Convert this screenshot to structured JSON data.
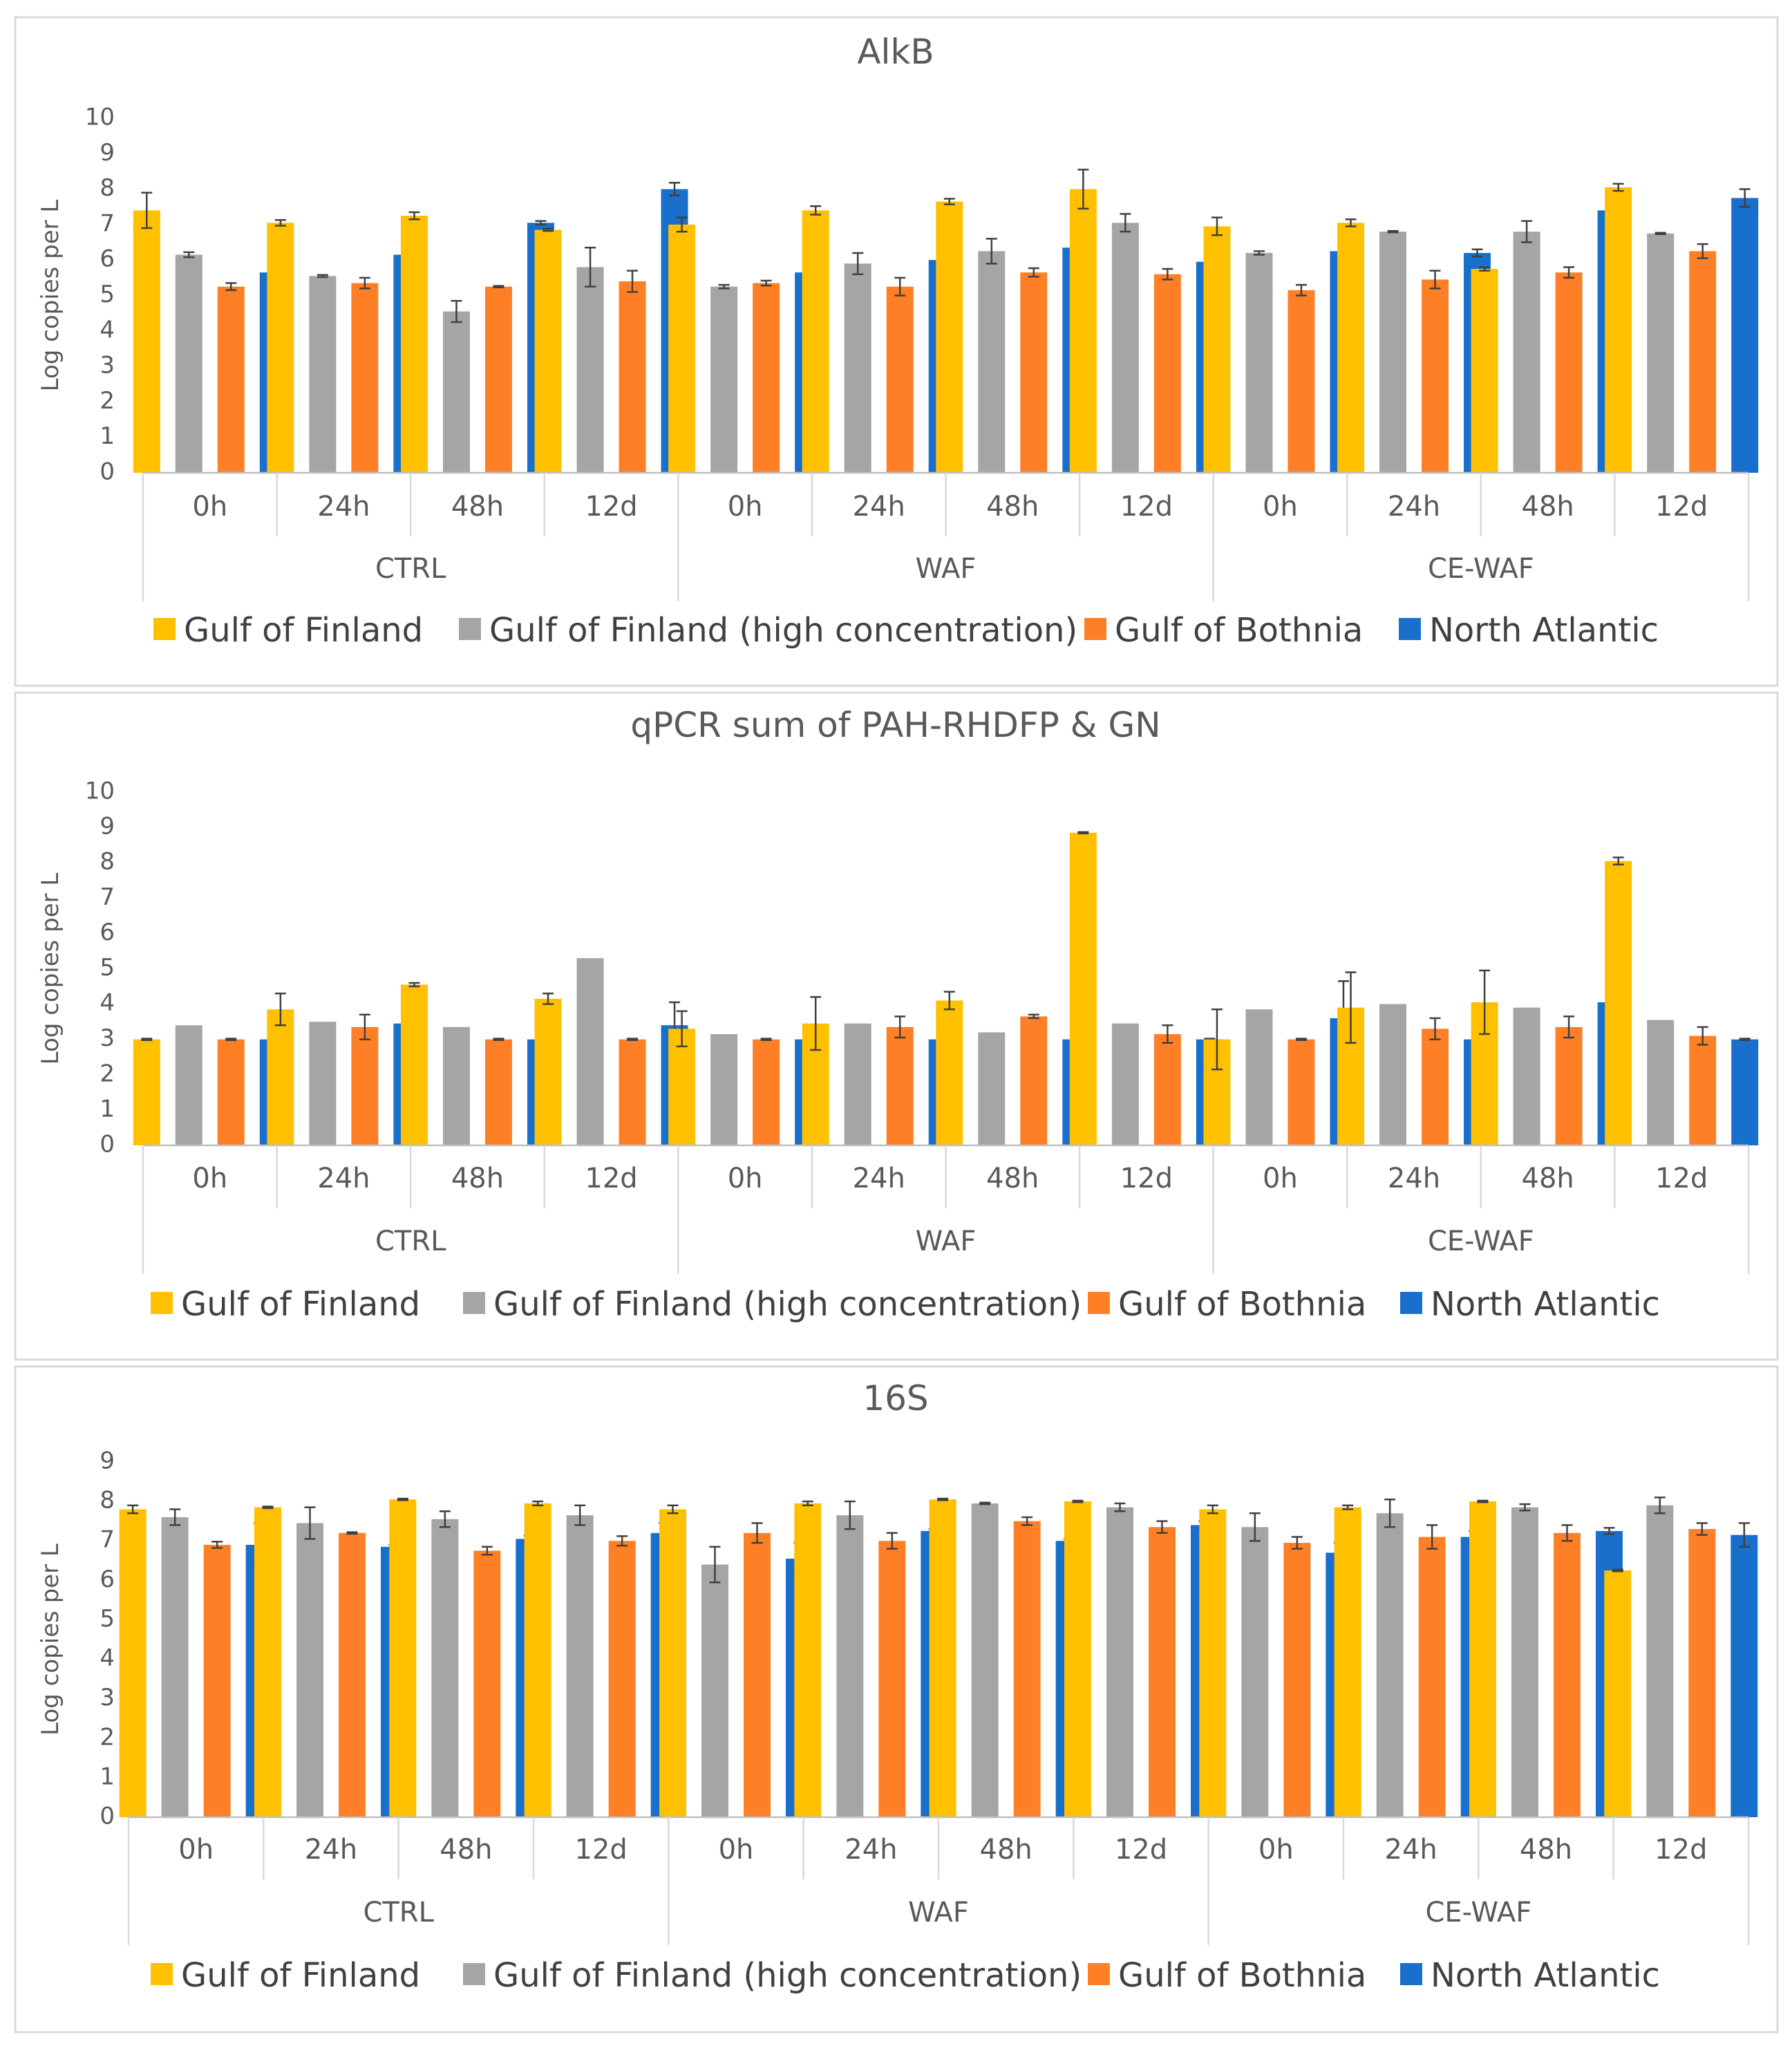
{
  "colors": {
    "gulf_finland": "#FFC000",
    "gulf_finland_high": "#A5A5A5",
    "gulf_bothnia": "#FF7F27",
    "north_atlantic": "#1870CC"
  },
  "chart_data": [
    {
      "type": "bar",
      "title": "AlkB",
      "ylabel": "Log copies per L",
      "xlabel": "",
      "ylim": [
        0,
        10
      ],
      "yticks": [
        0,
        1,
        2,
        3,
        4,
        5,
        6,
        7,
        8,
        9,
        10
      ],
      "groups": [
        "CTRL",
        "WAF",
        "CE-WAF"
      ],
      "timepoints": [
        "0h",
        "24h",
        "48h",
        "12d"
      ],
      "legend_position": "bottom",
      "series": [
        {
          "name": "Gulf of Finland",
          "color_key": "gulf_finland",
          "values": [
            7.4,
            7.05,
            7.25,
            6.85,
            7.0,
            7.4,
            7.65,
            8.0,
            6.95,
            7.05,
            5.75,
            8.05
          ],
          "errors": [
            0.5,
            0.08,
            0.1,
            0.03,
            0.2,
            0.12,
            0.08,
            0.55,
            0.25,
            0.1,
            0.05,
            0.1
          ]
        },
        {
          "name": "Gulf of Finland (high concentration)",
          "color_key": "gulf_finland_high",
          "values": [
            6.15,
            5.55,
            4.55,
            5.8,
            5.25,
            5.9,
            6.25,
            7.05,
            6.2,
            6.8,
            6.8,
            6.75
          ],
          "errors": [
            0.07,
            0.03,
            0.3,
            0.55,
            0.05,
            0.3,
            0.35,
            0.25,
            0.05,
            0.02,
            0.3,
            0.02
          ]
        },
        {
          "name": "Gulf of Bothnia",
          "color_key": "gulf_bothnia",
          "values": [
            5.25,
            5.35,
            5.25,
            5.4,
            5.35,
            5.25,
            5.65,
            5.6,
            5.15,
            5.45,
            5.65,
            6.25
          ],
          "errors": [
            0.1,
            0.15,
            0.02,
            0.3,
            0.07,
            0.25,
            0.12,
            0.15,
            0.15,
            0.25,
            0.15,
            0.2
          ]
        },
        {
          "name": "North Atlantic",
          "color_key": "north_atlantic",
          "values": [
            5.65,
            6.15,
            7.05,
            8.0,
            5.65,
            6.0,
            6.35,
            5.95,
            6.25,
            6.2,
            7.4,
            7.75
          ],
          "errors": [
            0.55,
            0.03,
            0.05,
            0.18,
            0.45,
            0.05,
            0.18,
            0.2,
            0.3,
            0.1,
            0.2,
            0.25
          ]
        }
      ]
    },
    {
      "type": "bar",
      "title": "qPCR sum of PAH-RHDFP & GN",
      "ylabel": "Log copies per L",
      "xlabel": "",
      "ylim": [
        0,
        10
      ],
      "yticks": [
        0,
        1,
        2,
        3,
        4,
        5,
        6,
        7,
        8,
        9,
        10
      ],
      "groups": [
        "CTRL",
        "WAF",
        "CE-WAF"
      ],
      "timepoints": [
        "0h",
        "24h",
        "48h",
        "12d"
      ],
      "legend_position": "bottom",
      "series": [
        {
          "name": "Gulf of Finland",
          "color_key": "gulf_finland",
          "values": [
            3.0,
            3.85,
            4.55,
            4.15,
            3.3,
            3.45,
            4.1,
            8.85,
            3.0,
            3.9,
            4.05,
            8.05
          ],
          "errors": [
            0.02,
            0.45,
            0.05,
            0.15,
            0.5,
            0.75,
            0.25,
            0.02,
            0.85,
            1.0,
            0.9,
            0.1
          ]
        },
        {
          "name": "Gulf of Finland (high concentration)",
          "color_key": "gulf_finland_high",
          "values": [
            3.4,
            3.5,
            3.35,
            5.3,
            3.15,
            3.45,
            3.2,
            3.45,
            3.85,
            4.0,
            3.9,
            3.55
          ]
        },
        {
          "name": "Gulf of Bothnia",
          "color_key": "gulf_bothnia",
          "values": [
            3.0,
            3.35,
            3.0,
            3.0,
            3.0,
            3.35,
            3.65,
            3.15,
            3.0,
            3.3,
            3.35,
            3.1
          ],
          "errors": [
            0.02,
            0.35,
            0.02,
            0.02,
            0.02,
            0.3,
            0.05,
            0.25,
            0.02,
            0.3,
            0.3,
            0.25
          ]
        },
        {
          "name": "North Atlantic",
          "color_key": "north_atlantic",
          "values": [
            3.0,
            3.45,
            3.0,
            3.4,
            3.0,
            3.0,
            3.0,
            3.0,
            3.6,
            3.0,
            4.05,
            3.0
          ],
          "errors": [
            0.02,
            0.75,
            0.02,
            0.65,
            0.02,
            0.02,
            0.02,
            0.02,
            1.05,
            0.02,
            0.9,
            0.02
          ]
        }
      ]
    },
    {
      "type": "bar",
      "title": "16S",
      "ylabel": "Log copies per L",
      "xlabel": "",
      "ylim": [
        0,
        9
      ],
      "yticks": [
        0,
        1,
        2,
        3,
        4,
        5,
        6,
        7,
        8,
        9
      ],
      "groups": [
        "CTRL",
        "WAF",
        "CE-WAF"
      ],
      "timepoints": [
        "0h",
        "24h",
        "48h",
        "12d"
      ],
      "legend_position": "bottom",
      "series": [
        {
          "name": "Gulf of Finland",
          "color_key": "gulf_finland",
          "values": [
            7.8,
            7.85,
            8.05,
            7.95,
            7.8,
            7.95,
            8.05,
            8.0,
            7.8,
            7.85,
            8.0,
            6.25
          ],
          "errors": [
            0.1,
            0.02,
            0.02,
            0.05,
            0.1,
            0.05,
            0.02,
            0.02,
            0.1,
            0.05,
            0.02,
            0.02
          ]
        },
        {
          "name": "Gulf of Finland (high concentration)",
          "color_key": "gulf_finland_high",
          "values": [
            7.6,
            7.45,
            7.55,
            7.65,
            6.4,
            7.65,
            7.95,
            7.85,
            7.35,
            7.7,
            7.85,
            7.9
          ],
          "errors": [
            0.2,
            0.4,
            0.2,
            0.25,
            0.45,
            0.35,
            0.02,
            0.1,
            0.35,
            0.35,
            0.08,
            0.2
          ]
        },
        {
          "name": "Gulf of Bothnia",
          "color_key": "gulf_bothnia",
          "values": [
            6.9,
            7.2,
            6.75,
            7.0,
            7.2,
            7.0,
            7.5,
            7.35,
            6.95,
            7.1,
            7.2,
            7.3
          ],
          "errors": [
            0.08,
            0.02,
            0.1,
            0.12,
            0.25,
            0.2,
            0.1,
            0.15,
            0.15,
            0.3,
            0.2,
            0.15
          ]
        },
        {
          "name": "North Atlantic",
          "color_key": "north_atlantic",
          "values": [
            6.9,
            6.85,
            7.05,
            7.2,
            6.55,
            7.25,
            7.0,
            7.4,
            6.7,
            7.1,
            7.25,
            7.15
          ],
          "errors": [
            0.55,
            0.05,
            0.08,
            0.25,
            0.4,
            0.05,
            0.05,
            0.1,
            0.25,
            0.15,
            0.08,
            0.3
          ]
        }
      ]
    }
  ]
}
